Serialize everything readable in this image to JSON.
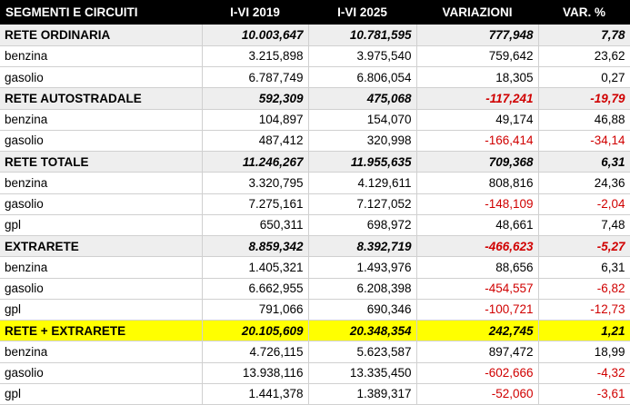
{
  "columns": [
    "SEGMENTI E CIRCUITI",
    "I-VI 2019",
    "I-VI 2025",
    "VARIAZIONI",
    "VAR. %"
  ],
  "rows": [
    {
      "kind": "header",
      "cells": [
        "RETE ORDINARIA",
        "10.003,647",
        "10.781,595",
        "777,948",
        "7,78"
      ]
    },
    {
      "kind": "data",
      "cells": [
        "benzina",
        "3.215,898",
        "3.975,540",
        "759,642",
        "23,62"
      ]
    },
    {
      "kind": "data",
      "cells": [
        "gasolio",
        "6.787,749",
        "6.806,054",
        "18,305",
        "0,27"
      ]
    },
    {
      "kind": "header",
      "cells": [
        "RETE AUTOSTRADALE",
        "592,309",
        "475,068",
        "-117,241",
        "-19,79"
      ]
    },
    {
      "kind": "data",
      "cells": [
        "benzina",
        "104,897",
        "154,070",
        "49,174",
        "46,88"
      ]
    },
    {
      "kind": "data",
      "cells": [
        "gasolio",
        "487,412",
        "320,998",
        "-166,414",
        "-34,14"
      ]
    },
    {
      "kind": "header",
      "cells": [
        "RETE TOTALE",
        "11.246,267",
        "11.955,635",
        "709,368",
        "6,31"
      ]
    },
    {
      "kind": "data",
      "cells": [
        "benzina",
        "3.320,795",
        "4.129,611",
        "808,816",
        "24,36"
      ]
    },
    {
      "kind": "data",
      "cells": [
        "gasolio",
        "7.275,161",
        "7.127,052",
        "-148,109",
        "-2,04"
      ]
    },
    {
      "kind": "data",
      "cells": [
        "gpl",
        "650,311",
        "698,972",
        "48,661",
        "7,48"
      ]
    },
    {
      "kind": "header",
      "cells": [
        "EXTRARETE",
        "8.859,342",
        "8.392,719",
        "-466,623",
        "-5,27"
      ]
    },
    {
      "kind": "data",
      "cells": [
        "benzina",
        "1.405,321",
        "1.493,976",
        "88,656",
        "6,31"
      ]
    },
    {
      "kind": "data",
      "cells": [
        "gasolio",
        "6.662,955",
        "6.208,398",
        "-454,557",
        "-6,82"
      ]
    },
    {
      "kind": "data",
      "cells": [
        "gpl",
        "791,066",
        "690,346",
        "-100,721",
        "-12,73"
      ]
    },
    {
      "kind": "highlight",
      "cells": [
        "RETE + EXTRARETE",
        "20.105,609",
        "20.348,354",
        "242,745",
        "1,21"
      ]
    },
    {
      "kind": "data",
      "cells": [
        "benzina",
        "4.726,115",
        "5.623,587",
        "897,472",
        "18,99"
      ]
    },
    {
      "kind": "data",
      "cells": [
        "gasolio",
        "13.938,116",
        "13.335,450",
        "-602,666",
        "-4,32"
      ]
    },
    {
      "kind": "data",
      "cells": [
        "gpl",
        "1.441,378",
        "1.389,317",
        "-52,060",
        "-3,61"
      ]
    }
  ],
  "colors": {
    "header_bg": "#000000",
    "header_text": "#ffffff",
    "section_bg": "#eeeeee",
    "highlight_bg": "#ffff00",
    "negative_text": "#d00000"
  }
}
